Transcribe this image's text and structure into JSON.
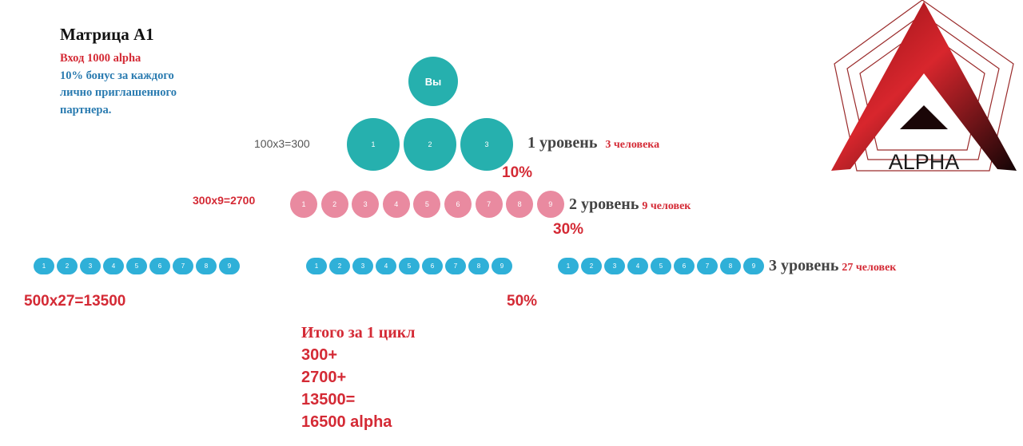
{
  "header": {
    "title": "Матрица A1",
    "line1": "Вход 1000 alpha",
    "line2": "10% бонус за каждого",
    "line3": "лично приглашенного",
    "line4": "партнера."
  },
  "you_label": "Вы",
  "level1": {
    "nodes": [
      "1",
      "2",
      "3"
    ],
    "formula": "100x3=300",
    "label": "1 уровень",
    "count": "3 человека",
    "percent": "10%"
  },
  "level2": {
    "nodes": [
      "1",
      "2",
      "3",
      "4",
      "5",
      "6",
      "7",
      "8",
      "9"
    ],
    "formula": "300x9=2700",
    "label": "2 уровень",
    "count": "9 человек",
    "percent": "30%"
  },
  "level3": {
    "groups": [
      [
        "1",
        "2",
        "3",
        "4",
        "5",
        "6",
        "7",
        "8",
        "9"
      ],
      [
        "1",
        "2",
        "3",
        "4",
        "5",
        "6",
        "7",
        "8",
        "9"
      ],
      [
        "1",
        "2",
        "3",
        "4",
        "5",
        "6",
        "7",
        "8",
        "9"
      ]
    ],
    "formula": "500x27=13500",
    "label": "3 уровень",
    "count": "27 человек",
    "percent": "50%"
  },
  "total": {
    "heading": "Итого за 1 цикл",
    "lines": [
      "300+",
      "2700+",
      "13500=",
      "16500 alpha"
    ]
  },
  "logo": {
    "text": "ALPHA"
  },
  "colors": {
    "red": "#d42a35",
    "blue": "#2a7bb0",
    "teal": "#26b0ae",
    "pink": "#e98aa0",
    "cyan": "#2fb0d8"
  }
}
